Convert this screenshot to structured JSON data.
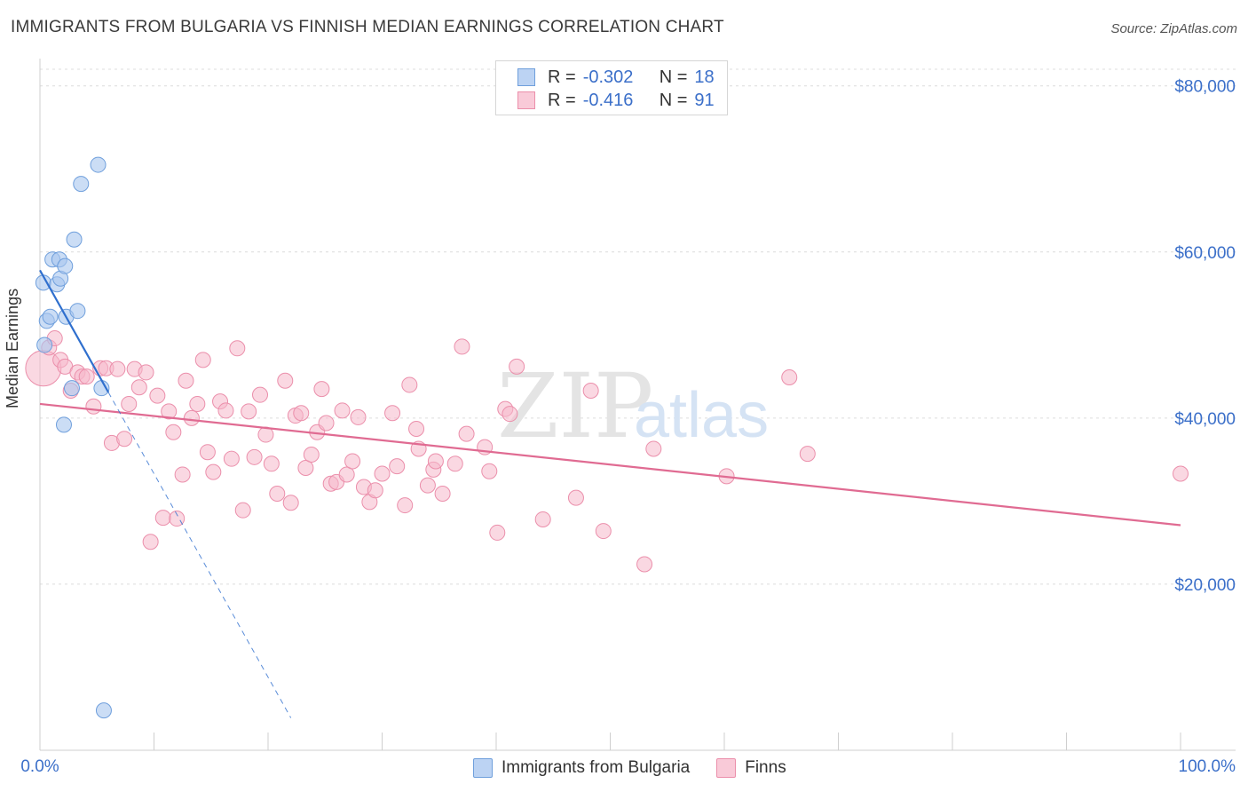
{
  "header": {
    "title": "IMMIGRANTS FROM BULGARIA VS FINNISH MEDIAN EARNINGS CORRELATION CHART",
    "source": "Source: ZipAtlas.com"
  },
  "legend_stats": [
    {
      "r_label": "R =",
      "r_value": "-0.302",
      "n_label": "N =",
      "n_value": "18"
    },
    {
      "r_label": "R =",
      "r_value": "-0.416",
      "n_label": "N =",
      "n_value": "91"
    }
  ],
  "watermark": {
    "zip": "ZIP",
    "atlas": "atlas"
  },
  "colors": {
    "blue_fill": "#a9c6ef",
    "blue_stroke": "#6f9fdc",
    "blue_line": "#2f6fce",
    "pink_fill": "#f6b8cb",
    "pink_stroke": "#eb8fab",
    "pink_line": "#e06b92",
    "tick_label": "#3b6fc9",
    "grid": "#dcdcdc"
  },
  "chart_data": {
    "type": "scatter",
    "title": "IMMIGRANTS FROM BULGARIA VS FINNISH MEDIAN EARNINGS CORRELATION CHART",
    "xlabel": "",
    "ylabel": "Median Earnings",
    "xlim": [
      0,
      100
    ],
    "ylim": [
      0,
      82000
    ],
    "x_tick_labels": [
      "0.0%",
      "100.0%"
    ],
    "y_ticks": [
      20000,
      40000,
      60000,
      80000
    ],
    "y_tick_labels": [
      "$20,000",
      "$40,000",
      "$60,000",
      "$80,000"
    ],
    "grid": true,
    "legend_position": "bottom",
    "series": [
      {
        "name": "Immigrants from Bulgaria",
        "color": "blue",
        "r": -0.302,
        "n": 18,
        "points": [
          [
            0.3,
            56300
          ],
          [
            0.4,
            48800
          ],
          [
            0.6,
            51700
          ],
          [
            0.9,
            52200
          ],
          [
            1.1,
            59100
          ],
          [
            1.5,
            56100
          ],
          [
            1.7,
            59100
          ],
          [
            1.8,
            56800
          ],
          [
            2.1,
            39200
          ],
          [
            2.2,
            58300
          ],
          [
            2.3,
            52200
          ],
          [
            2.8,
            43600
          ],
          [
            3.0,
            61500
          ],
          [
            3.3,
            52900
          ],
          [
            3.6,
            68200
          ],
          [
            5.1,
            70500
          ],
          [
            5.4,
            43600
          ],
          [
            5.6,
            4800
          ]
        ],
        "trend": {
          "x_start": 0,
          "y_start": 57800,
          "x_solid_end": 6.0,
          "x_dashed_end": 22.0
        }
      },
      {
        "name": "Finns",
        "color": "pink",
        "r": -0.416,
        "n": 91,
        "points": [
          [
            0.3,
            46000
          ],
          [
            0.8,
            48500
          ],
          [
            1.3,
            49600
          ],
          [
            1.8,
            47000
          ],
          [
            2.2,
            46200
          ],
          [
            2.7,
            43300
          ],
          [
            3.3,
            45500
          ],
          [
            3.7,
            45000
          ],
          [
            4.1,
            45000
          ],
          [
            4.7,
            41400
          ],
          [
            5.3,
            46000
          ],
          [
            5.8,
            46000
          ],
          [
            6.3,
            37000
          ],
          [
            6.8,
            45900
          ],
          [
            7.4,
            37500
          ],
          [
            7.8,
            41700
          ],
          [
            8.3,
            45900
          ],
          [
            8.7,
            43700
          ],
          [
            9.3,
            45500
          ],
          [
            9.7,
            25100
          ],
          [
            10.3,
            42700
          ],
          [
            10.8,
            28000
          ],
          [
            11.3,
            40800
          ],
          [
            11.7,
            38300
          ],
          [
            12.0,
            27900
          ],
          [
            12.8,
            44500
          ],
          [
            12.5,
            33200
          ],
          [
            13.3,
            40000
          ],
          [
            13.8,
            41700
          ],
          [
            14.3,
            47000
          ],
          [
            14.7,
            35900
          ],
          [
            15.2,
            33500
          ],
          [
            15.8,
            42000
          ],
          [
            16.3,
            40900
          ],
          [
            16.8,
            35100
          ],
          [
            17.3,
            48400
          ],
          [
            17.8,
            28900
          ],
          [
            18.3,
            40800
          ],
          [
            18.8,
            35300
          ],
          [
            19.3,
            42800
          ],
          [
            19.8,
            38000
          ],
          [
            20.3,
            34500
          ],
          [
            20.8,
            30900
          ],
          [
            21.5,
            44500
          ],
          [
            22.0,
            29800
          ],
          [
            22.4,
            40300
          ],
          [
            22.9,
            40600
          ],
          [
            23.3,
            34000
          ],
          [
            23.8,
            35600
          ],
          [
            24.3,
            38300
          ],
          [
            24.7,
            43500
          ],
          [
            25.1,
            39400
          ],
          [
            25.5,
            32100
          ],
          [
            26.0,
            32300
          ],
          [
            26.5,
            40900
          ],
          [
            26.9,
            33200
          ],
          [
            27.4,
            34800
          ],
          [
            27.9,
            40100
          ],
          [
            28.4,
            31700
          ],
          [
            28.9,
            29900
          ],
          [
            29.4,
            31300
          ],
          [
            30.0,
            33300
          ],
          [
            30.9,
            40600
          ],
          [
            31.3,
            34200
          ],
          [
            32.0,
            29500
          ],
          [
            32.4,
            44000
          ],
          [
            33.0,
            38700
          ],
          [
            33.2,
            36300
          ],
          [
            34.0,
            31900
          ],
          [
            34.5,
            33800
          ],
          [
            34.7,
            34800
          ],
          [
            35.3,
            30900
          ],
          [
            36.4,
            34500
          ],
          [
            37.0,
            48600
          ],
          [
            37.4,
            38100
          ],
          [
            39.0,
            36500
          ],
          [
            39.4,
            33600
          ],
          [
            40.1,
            26200
          ],
          [
            40.8,
            41100
          ],
          [
            41.2,
            40500
          ],
          [
            41.8,
            46200
          ],
          [
            44.1,
            27800
          ],
          [
            47.0,
            30400
          ],
          [
            48.3,
            43300
          ],
          [
            49.4,
            26400
          ],
          [
            53.0,
            22400
          ],
          [
            53.8,
            36300
          ],
          [
            60.2,
            33000
          ],
          [
            65.7,
            44900
          ],
          [
            67.3,
            35700
          ],
          [
            100.0,
            33300
          ]
        ],
        "trend": {
          "x_start": 0,
          "y_start": 41700,
          "x_end": 100,
          "y_end": 27100
        }
      }
    ]
  }
}
